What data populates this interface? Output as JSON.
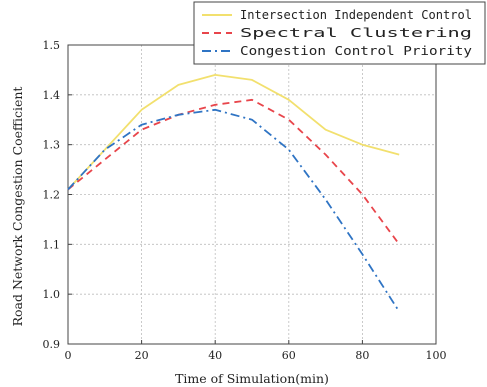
{
  "chart_data": {
    "type": "line",
    "xlabel": "Time of Simulation(min)",
    "ylabel": "Road Network Congestion Coefficient",
    "xlim": [
      0,
      100
    ],
    "ylim": [
      0.9,
      1.5
    ],
    "xticks": [
      0,
      20,
      40,
      60,
      80,
      100
    ],
    "yticks": [
      0.9,
      1.0,
      1.1,
      1.2,
      1.3,
      1.4,
      1.5
    ],
    "grid": true,
    "legend_position": "top-right",
    "series": [
      {
        "name": "Intersection Independent Control",
        "color": "#f2e06e",
        "line_style": "solid",
        "x": [
          0,
          10,
          20,
          30,
          40,
          50,
          60,
          70,
          80,
          90
        ],
        "y": [
          1.21,
          1.29,
          1.37,
          1.42,
          1.44,
          1.43,
          1.39,
          1.33,
          1.3,
          1.28
        ]
      },
      {
        "name": "Spectral Clustering",
        "color": "#e8454b",
        "line_style": "dashed",
        "x": [
          0,
          10,
          20,
          30,
          40,
          50,
          60,
          70,
          80,
          90
        ],
        "y": [
          1.21,
          1.27,
          1.33,
          1.36,
          1.38,
          1.39,
          1.35,
          1.28,
          1.2,
          1.1
        ]
      },
      {
        "name": "Congestion Control Priority",
        "color": "#2f74c4",
        "line_style": "dashdot",
        "x": [
          0,
          10,
          20,
          30,
          40,
          50,
          60,
          70,
          80,
          90
        ],
        "y": [
          1.21,
          1.29,
          1.34,
          1.36,
          1.37,
          1.35,
          1.29,
          1.19,
          1.08,
          0.965
        ]
      }
    ]
  }
}
